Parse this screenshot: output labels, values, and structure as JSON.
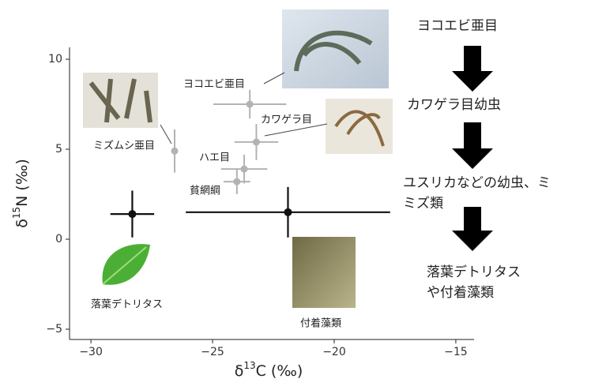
{
  "chart_data": {
    "type": "scatter",
    "xlabel": {
      "prefix": "δ",
      "sup": "13",
      "suffix": "C (‰)"
    },
    "ylabel": {
      "prefix": "δ",
      "sup": "15",
      "suffix": "N (‰)"
    },
    "xlim": [
      -30.88,
      -14.25
    ],
    "ylim": [
      -5.57,
      10.66
    ],
    "xticks": [
      {
        "value": -30,
        "label": "−30"
      },
      {
        "value": -25,
        "label": "−25"
      },
      {
        "value": -20,
        "label": "−20"
      },
      {
        "value": -15,
        "label": "−15"
      }
    ],
    "yticks": [
      {
        "value": -5,
        "label": "−5"
      },
      0,
      5,
      10
    ],
    "series": [
      {
        "color": "#b3b3b3",
        "labels": [
          "ミズムシ亜目",
          "ヨコエビ亜目",
          "カワゲラ目",
          "ハエ目",
          "貧網綱"
        ],
        "x": [
          -26.56,
          -23.47,
          -23.2,
          -23.7,
          -24.0
        ],
        "y": [
          4.9,
          7.5,
          5.4,
          3.9,
          3.2
        ],
        "xerr": [
          0,
          1.5,
          0.9,
          0.95,
          0.55
        ],
        "yerr": [
          1.2,
          0.8,
          1.0,
          0.8,
          0.7
        ]
      },
      {
        "color": "#111111",
        "labels": [
          "落葉デトリタス",
          "付着藻類"
        ],
        "x": [
          -28.3,
          -21.9
        ],
        "y": [
          1.4,
          1.5
        ],
        "xerr": [
          0.9,
          4.2
        ],
        "yerr": [
          1.3,
          1.4
        ]
      }
    ]
  },
  "flow": [
    [
      "ヨコエビ亜目"
    ],
    [
      "カワゲラ目幼虫"
    ],
    [
      "ユスリカなどの幼虫、ミ",
      "ミズ類"
    ],
    [
      "落葉デトリタス",
      "や付着藻類"
    ]
  ]
}
